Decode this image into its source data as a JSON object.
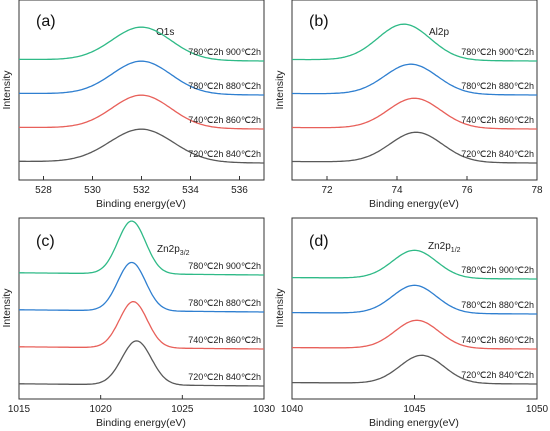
{
  "chart_data": [
    {
      "type": "line",
      "panel_label": "(a)",
      "annotation": "O1s",
      "xlabel": "Binding energy(eV)",
      "ylabel": "Intensity",
      "xlim": [
        527,
        537
      ],
      "xticks": [
        528,
        530,
        532,
        534,
        536
      ],
      "series": [
        {
          "name": "720℃2h 840℃2h",
          "color": "#595959",
          "center": 532.0,
          "width": 1.3,
          "amplitude": 1.0,
          "baseline": 0.0
        },
        {
          "name": "740℃2h 860℃2h",
          "color": "#e8605a",
          "center": 532.0,
          "width": 1.2,
          "amplitude": 1.0,
          "baseline": 1.3
        },
        {
          "name": "780℃2h 880℃2h",
          "color": "#2f7fd0",
          "center": 532.0,
          "width": 1.2,
          "amplitude": 1.0,
          "baseline": 2.6
        },
        {
          "name": "780℃2h 900℃2h",
          "color": "#2fba87",
          "center": 532.0,
          "width": 1.2,
          "amplitude": 1.0,
          "baseline": 3.9
        }
      ]
    },
    {
      "type": "line",
      "panel_label": "(b)",
      "annotation": "Al2p",
      "xlabel": "Binding energy(eV)",
      "ylabel": "Intensity",
      "xlim": [
        71,
        78
      ],
      "xticks": [
        72,
        74,
        76,
        78
      ],
      "series": [
        {
          "name": "720℃2h 840℃2h",
          "color": "#595959",
          "center": 74.55,
          "width": 0.75,
          "amplitude": 1.0,
          "baseline": 0.0
        },
        {
          "name": "740℃2h 860℃2h",
          "color": "#e8605a",
          "center": 74.5,
          "width": 0.75,
          "amplitude": 1.0,
          "baseline": 1.2
        },
        {
          "name": "780℃2h 880℃2h",
          "color": "#2f7fd0",
          "center": 74.4,
          "width": 0.75,
          "amplitude": 1.0,
          "baseline": 2.4
        },
        {
          "name": "780℃2h 900℃2h",
          "color": "#2fba87",
          "center": 74.2,
          "width": 0.75,
          "amplitude": 1.2,
          "baseline": 3.6
        }
      ]
    },
    {
      "type": "line",
      "panel_label": "(c)",
      "annotation_main": "Zn2p",
      "annotation_sub": "3/2",
      "xlabel": "Binding energy(eV)",
      "ylabel": "Intensity",
      "xlim": [
        1015,
        1030
      ],
      "xticks": [
        1015,
        1020,
        1025,
        1030
      ],
      "series": [
        {
          "name": "720℃2h 840℃2h",
          "color": "#595959",
          "center": 1022.2,
          "width": 0.9,
          "amplitude": 1.0,
          "baseline": 0.0
        },
        {
          "name": "740℃2h 860℃2h",
          "color": "#e8605a",
          "center": 1022.0,
          "width": 0.85,
          "amplitude": 1.05,
          "baseline": 1.3
        },
        {
          "name": "780℃2h 880℃2h",
          "color": "#2f7fd0",
          "center": 1021.9,
          "width": 0.85,
          "amplitude": 1.1,
          "baseline": 2.6
        },
        {
          "name": "780℃2h 900℃2h",
          "color": "#2fba87",
          "center": 1021.9,
          "width": 0.85,
          "amplitude": 1.2,
          "baseline": 3.9
        }
      ]
    },
    {
      "type": "line",
      "panel_label": "(d)",
      "annotation_main": "Zn2p",
      "annotation_sub": "1/2",
      "xlabel": "Binding energy(eV)",
      "ylabel": "Intensity",
      "xlim": [
        1040,
        1050
      ],
      "xticks": [
        1040,
        1045,
        1050
      ],
      "series": [
        {
          "name": "720℃2h 840℃2h",
          "color": "#595959",
          "center": 1045.3,
          "width": 0.9,
          "amplitude": 1.0,
          "baseline": 0.0
        },
        {
          "name": "740℃2h 860℃2h",
          "color": "#e8605a",
          "center": 1045.1,
          "width": 0.9,
          "amplitude": 1.0,
          "baseline": 1.3
        },
        {
          "name": "780℃2h 880℃2h",
          "color": "#2f7fd0",
          "center": 1045.0,
          "width": 0.9,
          "amplitude": 1.0,
          "baseline": 2.6
        },
        {
          "name": "780℃2h 900℃2h",
          "color": "#2fba87",
          "center": 1045.0,
          "width": 0.9,
          "amplitude": 1.0,
          "baseline": 3.9
        }
      ]
    }
  ]
}
